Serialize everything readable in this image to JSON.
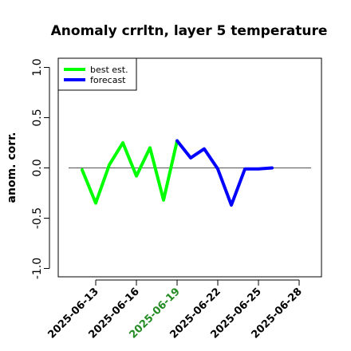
{
  "chart_data": {
    "type": "line",
    "title": "Anomaly crrltn, layer 5 temperature",
    "xlabel": "",
    "ylabel": "anom. corr.",
    "ylim": [
      -1.0,
      1.0
    ],
    "yticks": [
      "-1.0",
      "-0.5",
      "0.0",
      "0.5",
      "1.0"
    ],
    "x_ticks": [
      "2025-06-13",
      "2025-06-16",
      "2025-06-19",
      "2025-06-22",
      "2025-06-25",
      "2025-06-28"
    ],
    "highlight_tick": "2025-06-19",
    "highlight_color": "#228b22",
    "reference_line": 0.0,
    "legend_position": "top-left",
    "series": [
      {
        "name": "best est.",
        "color": "#00ff00",
        "points": [
          {
            "x": "2025-06-12",
            "y": -0.02
          },
          {
            "x": "2025-06-13",
            "y": -0.35
          },
          {
            "x": "2025-06-14",
            "y": 0.03
          },
          {
            "x": "2025-06-15",
            "y": 0.25
          },
          {
            "x": "2025-06-16",
            "y": -0.08
          },
          {
            "x": "2025-06-17",
            "y": 0.2
          },
          {
            "x": "2025-06-18",
            "y": -0.32
          },
          {
            "x": "2025-06-19",
            "y": 0.27
          }
        ]
      },
      {
        "name": "forecast",
        "color": "#0000ff",
        "points": [
          {
            "x": "2025-06-19",
            "y": 0.27
          },
          {
            "x": "2025-06-20",
            "y": 0.1
          },
          {
            "x": "2025-06-21",
            "y": 0.19
          },
          {
            "x": "2025-06-22",
            "y": -0.01
          },
          {
            "x": "2025-06-23",
            "y": -0.37
          },
          {
            "x": "2025-06-24",
            "y": -0.01
          },
          {
            "x": "2025-06-25",
            "y": -0.01
          },
          {
            "x": "2025-06-26",
            "y": 0.0
          }
        ]
      }
    ]
  }
}
